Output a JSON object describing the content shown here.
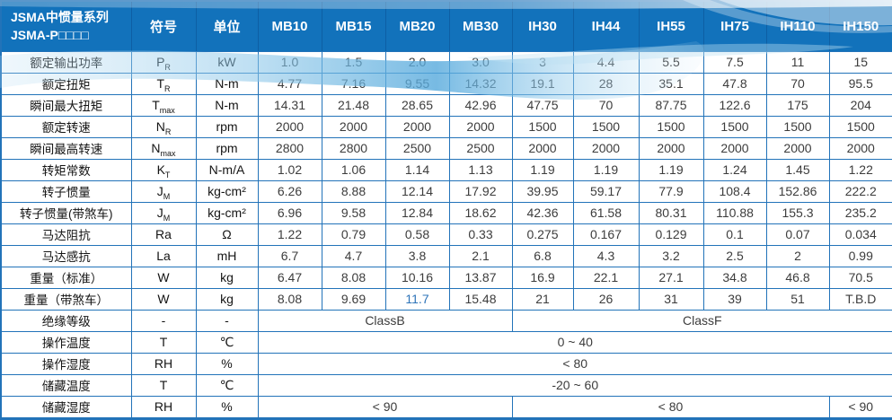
{
  "theme": {
    "header_bg": "#1272bb",
    "border": "#2273b9",
    "label_text": "#141414",
    "value_text": "#3c3c3c",
    "accent_value": "#2e74b9",
    "body_bg": "#ffffff"
  },
  "header": {
    "title_line1": "JSMA中惯量系列",
    "title_line2": "JSMA-P□□□□",
    "symbol": "符号",
    "unit": "单位",
    "models": [
      "MB10",
      "MB15",
      "MB20",
      "MB30",
      "IH30",
      "IH44",
      "IH55",
      "IH75",
      "IH110",
      "IH150"
    ]
  },
  "rows": [
    {
      "label": "额定输出功率",
      "sym": "P",
      "sub": "R",
      "unit": "kW",
      "values": [
        "1.0",
        "1.5",
        "2.0",
        "3.0",
        "3",
        "4.4",
        "5.5",
        "7.5",
        "11",
        "15"
      ]
    },
    {
      "label": "额定扭矩",
      "sym": "T",
      "sub": "R",
      "unit": "N-m",
      "values": [
        "4.77",
        "7.16",
        "9.55",
        "14.32",
        "19.1",
        "28",
        "35.1",
        "47.8",
        "70",
        "95.5"
      ]
    },
    {
      "label": "瞬间最大扭矩",
      "sym": "T",
      "sub": "max",
      "unit": "N-m",
      "values": [
        "14.31",
        "21.48",
        "28.65",
        "42.96",
        "47.75",
        "70",
        "87.75",
        "122.6",
        "175",
        "204"
      ]
    },
    {
      "label": "额定转速",
      "sym": "N",
      "sub": "R",
      "unit": "rpm",
      "values": [
        "2000",
        "2000",
        "2000",
        "2000",
        "1500",
        "1500",
        "1500",
        "1500",
        "1500",
        "1500"
      ]
    },
    {
      "label": "瞬间最高转速",
      "sym": "N",
      "sub": "max",
      "unit": "rpm",
      "values": [
        "2800",
        "2800",
        "2500",
        "2500",
        "2000",
        "2000",
        "2000",
        "2000",
        "2000",
        "2000"
      ]
    },
    {
      "label": "转矩常数",
      "sym": "K",
      "sub": "T",
      "unit": "N-m/A",
      "values": [
        "1.02",
        "1.06",
        "1.14",
        "1.13",
        "1.19",
        "1.19",
        "1.19",
        "1.24",
        "1.45",
        "1.22"
      ]
    },
    {
      "label": "转子惯量",
      "sym": "J",
      "sub": "M",
      "unit": "kg-cm²",
      "values": [
        "6.26",
        "8.88",
        "12.14",
        "17.92",
        "39.95",
        "59.17",
        "77.9",
        "108.4",
        "152.86",
        "222.2"
      ]
    },
    {
      "label": "转子惯量(带煞车)",
      "sym": "J",
      "sub": "M",
      "unit": "kg-cm²",
      "values": [
        "6.96",
        "9.58",
        "12.84",
        "18.62",
        "42.36",
        "61.58",
        "80.31",
        "110.88",
        "155.3",
        "235.2"
      ]
    },
    {
      "label": "马达阻抗",
      "sym": "Ra",
      "sub": "",
      "unit": "Ω",
      "values": [
        "1.22",
        "0.79",
        "0.58",
        "0.33",
        "0.275",
        "0.167",
        "0.129",
        "0.1",
        "0.07",
        "0.034"
      ]
    },
    {
      "label": "马达感抗",
      "sym": "La",
      "sub": "",
      "unit": "mH",
      "values": [
        "6.7",
        "4.7",
        "3.8",
        "2.1",
        "6.8",
        "4.3",
        "3.2",
        "2.5",
        "2",
        "0.99"
      ]
    },
    {
      "label": "重量（标准）",
      "sym": "W",
      "sub": "",
      "unit": "kg",
      "values": [
        "6.47",
        "8.08",
        "10.16",
        "13.87",
        "16.9",
        "22.1",
        "27.1",
        "34.8",
        "46.8",
        "70.5"
      ]
    },
    {
      "label": "重量（带煞车）",
      "sym": "W",
      "sub": "",
      "unit": "kg",
      "values": [
        "8.08",
        "9.69",
        "11.7",
        "15.48",
        "21",
        "26",
        "31",
        "39",
        "51",
        "T.B.D"
      ],
      "highlight": [
        2
      ]
    },
    {
      "label": "绝缘等级",
      "sym": "-",
      "sub": "",
      "unit": "-",
      "spans": [
        {
          "text": "ClassB",
          "cols": 4
        },
        {
          "text": "ClassF",
          "cols": 6
        }
      ]
    },
    {
      "label": "操作温度",
      "sym": "T",
      "sub": "",
      "unit": "℃",
      "spans": [
        {
          "text": "0 ~ 40",
          "cols": 10
        }
      ]
    },
    {
      "label": "操作湿度",
      "sym": "RH",
      "sub": "",
      "unit": "%",
      "spans": [
        {
          "text": "< 80",
          "cols": 10
        }
      ]
    },
    {
      "label": "储藏温度",
      "sym": "T",
      "sub": "",
      "unit": "℃",
      "spans": [
        {
          "text": "-20 ~ 60",
          "cols": 10
        }
      ]
    },
    {
      "label": "储藏湿度",
      "sym": "RH",
      "sub": "",
      "unit": "%",
      "spans": [
        {
          "text": "< 90",
          "cols": 4
        },
        {
          "text": "< 80",
          "cols": 5
        },
        {
          "text": "< 90",
          "cols": 1
        }
      ]
    }
  ]
}
